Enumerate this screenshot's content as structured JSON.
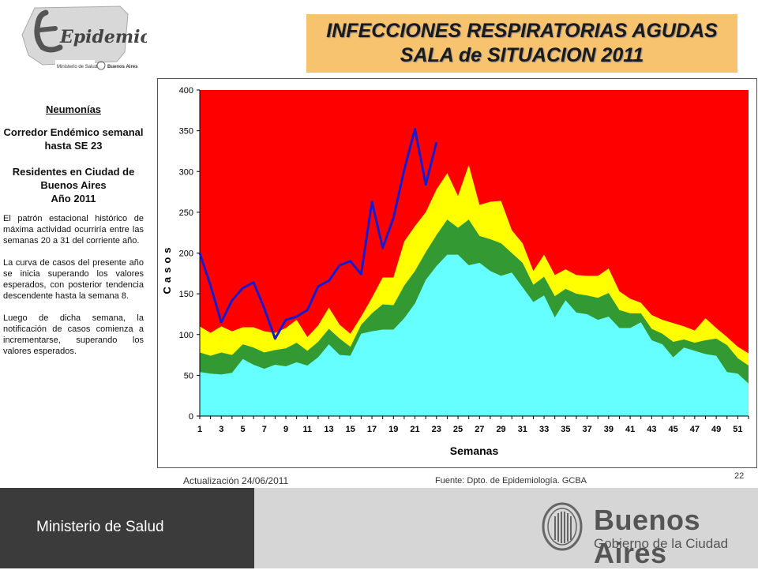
{
  "header": {
    "title_line1": "INFECCIONES RESPIRATORIAS AGUDAS",
    "title_line2": "SALA de SITUACION 2011"
  },
  "logo": {
    "text": "Epidemiología",
    "sub_left": "Ministerio de Salud",
    "sub_right": "Buenos Aires"
  },
  "sidebar": {
    "heading": "Neumonías",
    "subheading": "Corredor Endémico semanal hasta SE 23",
    "population": "Residentes en Ciudad de Buenos Aires",
    "year": "Año 2011",
    "para1": "El patrón estacional histórico de máxima actividad ocurriría entre las semanas 20 a 31 del corriente año.",
    "para2": "La curva de casos del presente año se inicia superando los valores esperados, con posterior tendencia descendente hasta la semana 8.",
    "para3": "Luego de dicha semana, la notificación de casos comienza a incrementarse, superando los valores esperados."
  },
  "footer": {
    "updated": "Actualización 24/06/2011",
    "source": "Fuente: Dpto. de Epidemiología. GCBA",
    "page": "22"
  },
  "bottom": {
    "ministerio": "Ministerio de Salud",
    "ba_name": "Buenos Aires",
    "ba_sub": "Gobierno de la Ciudad"
  },
  "chart_data": {
    "type": "area",
    "title": "",
    "xlabel": "Semanas",
    "ylabel": "Casos",
    "ylim": [
      0,
      400
    ],
    "yticks": [
      0,
      50,
      100,
      150,
      200,
      250,
      300,
      350,
      400
    ],
    "xticks": [
      1,
      3,
      5,
      7,
      9,
      11,
      13,
      15,
      17,
      19,
      21,
      23,
      25,
      27,
      29,
      31,
      33,
      35,
      37,
      39,
      41,
      43,
      45,
      47,
      49,
      51
    ],
    "x": [
      1,
      2,
      3,
      4,
      5,
      6,
      7,
      8,
      9,
      10,
      11,
      12,
      13,
      14,
      15,
      16,
      17,
      18,
      19,
      20,
      21,
      22,
      23,
      24,
      25,
      26,
      27,
      28,
      29,
      30,
      31,
      32,
      33,
      34,
      35,
      36,
      37,
      38,
      39,
      40,
      41,
      42,
      43,
      44,
      45,
      46,
      47,
      48,
      49,
      50,
      51,
      52
    ],
    "grid": false,
    "colors": {
      "red": "#ff0000",
      "yellow": "#ffff00",
      "green": "#339933",
      "cyan": "#66ffff",
      "line": "#1a1acc"
    },
    "series": [
      {
        "band": "cyan",
        "values": [
          54,
          52,
          51,
          53,
          70,
          63,
          58,
          63,
          61,
          66,
          62,
          72,
          88,
          75,
          74,
          101,
          104,
          106,
          106,
          120,
          138,
          167,
          184,
          198,
          198,
          185,
          188,
          178,
          172,
          176,
          158,
          140,
          148,
          121,
          142,
          127,
          125,
          118,
          122,
          108,
          108,
          115,
          93,
          88,
          72,
          84,
          80,
          76,
          74,
          54,
          52,
          40
        ]
      },
      {
        "band": "green",
        "values": [
          78,
          74,
          78,
          75,
          88,
          84,
          78,
          81,
          83,
          90,
          80,
          91,
          107,
          95,
          85,
          112,
          126,
          137,
          136,
          160,
          178,
          201,
          222,
          241,
          231,
          241,
          221,
          217,
          212,
          200,
          188,
          161,
          171,
          147,
          156,
          150,
          148,
          145,
          151,
          130,
          126,
          126,
          107,
          101,
          91,
          94,
          90,
          93,
          95,
          87,
          71,
          62
        ]
      },
      {
        "band": "yellow",
        "values": [
          110,
          102,
          110,
          104,
          109,
          109,
          104,
          102,
          108,
          118,
          97,
          111,
          133,
          112,
          101,
          122,
          145,
          170,
          170,
          214,
          233,
          250,
          278,
          298,
          270,
          308,
          259,
          263,
          264,
          228,
          212,
          178,
          198,
          173,
          180,
          173,
          172,
          172,
          181,
          153,
          144,
          139,
          124,
          118,
          114,
          110,
          105,
          120,
          108,
          97,
          85,
          77
        ]
      },
      {
        "band": "red",
        "values": [
          400,
          400,
          400,
          400,
          400,
          400,
          400,
          400,
          400,
          400,
          400,
          400,
          400,
          400,
          400,
          400,
          400,
          400,
          400,
          400,
          400,
          400,
          400,
          400,
          400,
          400,
          400,
          400,
          400,
          400,
          400,
          400,
          400,
          400,
          400,
          400,
          400,
          400,
          400,
          400,
          400,
          400,
          400,
          400,
          400,
          400,
          400,
          400,
          400,
          400,
          400,
          400
        ]
      }
    ],
    "current_year": {
      "x": [
        1,
        2,
        3,
        4,
        5,
        6,
        7,
        8,
        9,
        10,
        11,
        12,
        13,
        14,
        15,
        16,
        17,
        18,
        19,
        20,
        21,
        22,
        23
      ],
      "values": [
        200,
        160,
        115,
        142,
        157,
        164,
        132,
        95,
        118,
        122,
        130,
        159,
        166,
        185,
        190,
        174,
        263,
        206,
        243,
        302,
        352,
        284,
        336
      ]
    }
  }
}
